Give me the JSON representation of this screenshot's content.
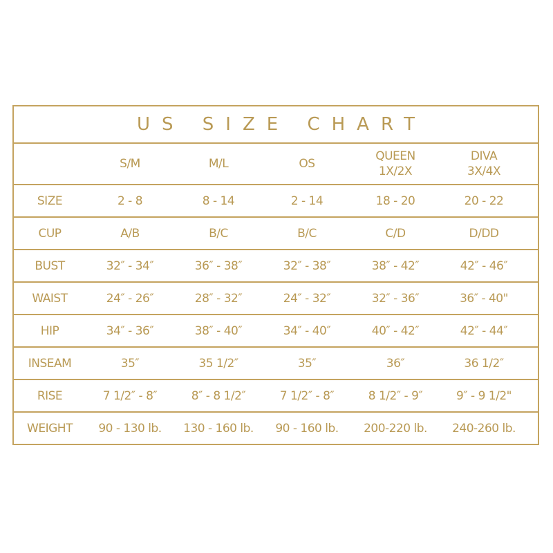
{
  "title": "US SIZE CHART",
  "columns": [
    "S/M",
    "M/L",
    "OS",
    "QUEEN\n1X/2X",
    "DIVA\n3X/4X"
  ],
  "rows": [
    {
      "label": "SIZE",
      "values": [
        "2 - 8",
        "8 - 14",
        "2 - 14",
        "18 - 20",
        "20 - 22"
      ]
    },
    {
      "label": "CUP",
      "values": [
        "A/B",
        "B/C",
        "B/C",
        "C/D",
        "D/DD"
      ]
    },
    {
      "label": "BUST",
      "values": [
        "32″ - 34″",
        "36″ - 38″",
        "32″ - 38″",
        "38″ - 42″",
        "42″ - 46″"
      ]
    },
    {
      "label": "WAIST",
      "values": [
        "24″ - 26″",
        "28″ - 32″",
        "24″ - 32″",
        "32″ - 36″",
        "36″ - 40\""
      ]
    },
    {
      "label": "HIP",
      "values": [
        "34″ - 36″",
        "38″ - 40″",
        "34″ - 40″",
        "40″ - 42″",
        "42″ - 44″"
      ]
    },
    {
      "label": "INSEAM",
      "values": [
        "35″",
        "35 1/2″",
        "35″",
        "36″",
        "36 1/2″"
      ]
    },
    {
      "label": "RISE",
      "values": [
        "7 1/2″ - 8″",
        "8″ - 8 1/2″",
        "7 1/2″ - 8″",
        "8 1/2″ - 9″",
        "9″ - 9 1/2\""
      ]
    },
    {
      "label": "WEIGHT",
      "values": [
        "90 - 130 lb.",
        "130 - 160 lb.",
        "90 - 160 lb.",
        "200-220 lb.",
        "240-260 lb."
      ]
    }
  ],
  "colors": {
    "accent": "#b99a55"
  }
}
